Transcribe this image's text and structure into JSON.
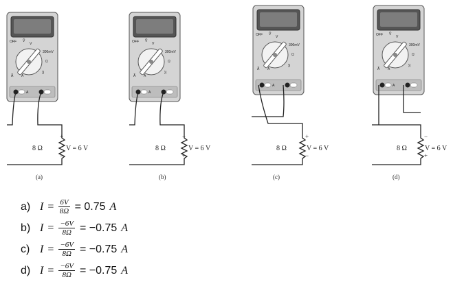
{
  "meter": {
    "dial_off": "OFF",
    "dial_v_dc": "V",
    "dial_v_ac": "Ṽ",
    "dial_mv": "300mV",
    "dial_ohm": "Ω",
    "dial_a_ac": "Ã",
    "dial_a_dc": "A",
    "dial_continuity": "))",
    "jack_a": "A"
  },
  "circuits": [
    {
      "caption": "(a)",
      "resistance": "8 Ω",
      "voltage": "V = 6 V",
      "top_sign": "+",
      "bottom_sign": "−"
    },
    {
      "caption": "(b)",
      "resistance": "8 Ω",
      "voltage": "V = 6 V",
      "top_sign": "−",
      "bottom_sign": "+"
    },
    {
      "caption": "(c)",
      "resistance": "8 Ω",
      "voltage": "V = 6 V",
      "top_sign": "+",
      "bottom_sign": "−"
    },
    {
      "caption": "(d)",
      "resistance": "8 Ω",
      "voltage": "V = 6 V",
      "top_sign": "−",
      "bottom_sign": "+"
    }
  ],
  "answers": [
    {
      "letter": "a)",
      "var": "I",
      "eq": "=",
      "num": "6V",
      "den": "8Ω",
      "result": "= 0.75",
      "unit": "A"
    },
    {
      "letter": "b)",
      "var": "I",
      "eq": "=",
      "num": "−6V",
      "den": "8Ω",
      "result": "= −0.75",
      "unit": "A"
    },
    {
      "letter": "c)",
      "var": "I",
      "eq": "=",
      "num": "−6V",
      "den": "8Ω",
      "result": "= −0.75",
      "unit": "A"
    },
    {
      "letter": "d)",
      "var": "I",
      "eq": "=",
      "num": "−6V",
      "den": "8Ω",
      "result": "= −0.75",
      "unit": "A"
    }
  ]
}
